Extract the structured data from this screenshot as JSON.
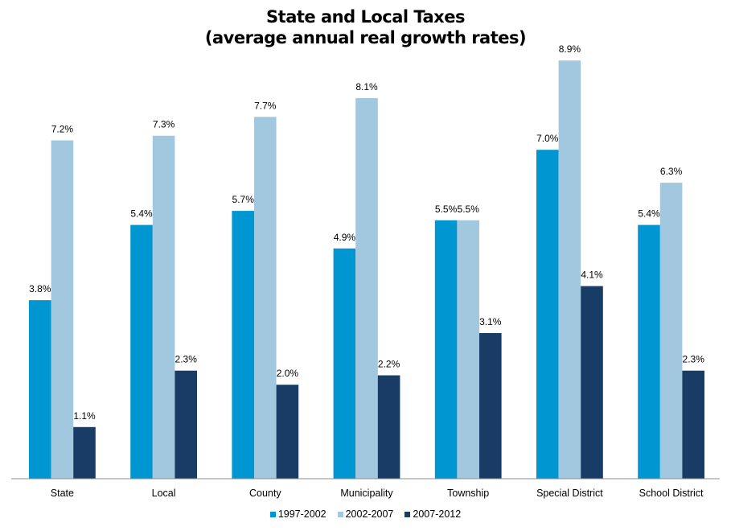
{
  "chart_data": {
    "type": "bar",
    "title": "State and Local Taxes",
    "subtitle": "(average annual real growth rates)",
    "xlabel": "",
    "ylabel": "",
    "ylim": [
      0,
      9
    ],
    "grid": false,
    "legend_position": "bottom",
    "value_format": "percent_1dp",
    "categories": [
      "State",
      "Local",
      "County",
      "Municipality",
      "Township",
      "Special District",
      "School District"
    ],
    "series": [
      {
        "name": "1997-2002",
        "color": "#0096D1",
        "values": [
          3.8,
          5.4,
          5.7,
          4.9,
          5.5,
          7.0,
          5.4
        ]
      },
      {
        "name": "2002-2007",
        "color": "#A2C8E0",
        "values": [
          7.2,
          7.3,
          7.7,
          8.1,
          5.5,
          8.9,
          6.3
        ]
      },
      {
        "name": "2007-2012",
        "color": "#183C65",
        "values": [
          1.1,
          2.3,
          2.0,
          2.2,
          3.1,
          4.1,
          2.3
        ]
      }
    ],
    "data_labels": [
      [
        "3.8%",
        "5.4%",
        "5.7%",
        "4.9%",
        "5.5%",
        "7.0%",
        "5.4%"
      ],
      [
        "7.2%",
        "7.3%",
        "7.7%",
        "8.1%",
        "5.5%",
        "8.9%",
        "6.3%"
      ],
      [
        "1.1%",
        "2.3%",
        "2.0%",
        "2.2%",
        "3.1%",
        "4.1%",
        "2.3%"
      ]
    ],
    "axis_color": "#8C8C8C"
  }
}
